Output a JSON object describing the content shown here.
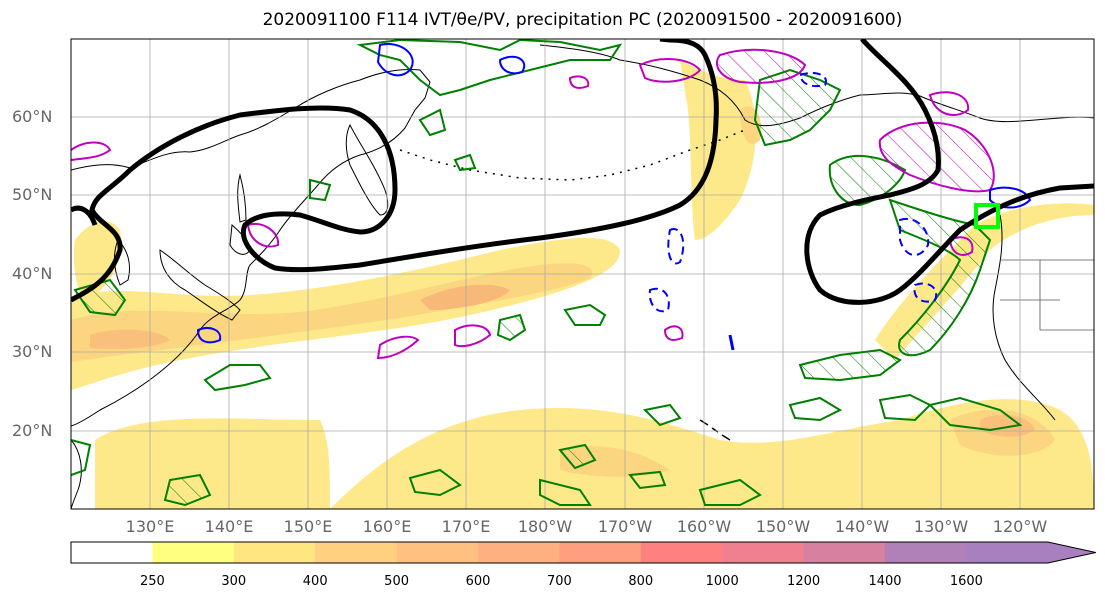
{
  "title": "2020091100 F114 IVT/θe/PV, precipitation PC (2020091500 - 2020091600)",
  "lat_labels": [
    "60°N",
    "50°N",
    "40°N",
    "30°N",
    "20°N"
  ],
  "lon_labels": [
    "130°E",
    "140°E",
    "150°E",
    "160°E",
    "170°E",
    "180°W",
    "170°W",
    "160°W",
    "150°W",
    "140°W",
    "130°W",
    "120°W"
  ],
  "colorbar": {
    "labels": [
      "250",
      "300",
      "400",
      "500",
      "600",
      "700",
      "800",
      "1000",
      "1200",
      "1400",
      "1600"
    ],
    "colors": [
      "#ffff80",
      "#ffe680",
      "#ffd080",
      "#ffc080",
      "#ffb080",
      "#ff9f80",
      "#ff8080",
      "#f07f8f",
      "#d880a0",
      "#b080b8",
      "#a880c0"
    ]
  },
  "colors": {
    "ivt_fill": "#fde98a",
    "ivt_mid": "#fbd580",
    "ivt_core": "#f8b878",
    "theta_e": "#000000",
    "pv_pos": "#0000ff",
    "precip": "#008000",
    "magenta": "#c000c0",
    "marker": "#00ff00"
  }
}
